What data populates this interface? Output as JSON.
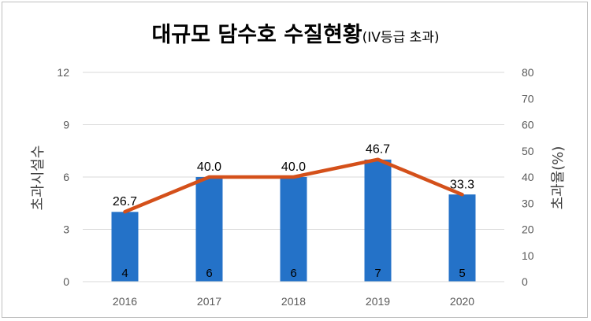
{
  "chart_data": {
    "type": "bar+line",
    "title": "대규모 담수호 수질현황",
    "subtitle": "(IV등급 초과)",
    "categories": [
      "2016",
      "2017",
      "2018",
      "2019",
      "2020"
    ],
    "series": [
      {
        "name": "초과시설수",
        "type": "bar",
        "axis": "left",
        "values": [
          4,
          6,
          6,
          7,
          5
        ],
        "color": "#2472c8"
      },
      {
        "name": "초과율(%)",
        "type": "line",
        "axis": "right",
        "values": [
          26.7,
          40.0,
          40.0,
          46.7,
          33.3
        ],
        "value_labels": [
          "26.7",
          "40.0",
          "40.0",
          "46.7",
          "33.3"
        ],
        "color": "#d4501a"
      }
    ],
    "ylabel_left": "초과시설수",
    "ylabel_right": "초과율(%)",
    "ylim_left": [
      0,
      12
    ],
    "yticks_left": [
      0,
      3,
      6,
      9,
      12
    ],
    "ylim_right": [
      0,
      80
    ],
    "yticks_right": [
      0,
      10,
      20,
      30,
      40,
      50,
      60,
      70,
      80
    ],
    "grid": true,
    "legend": "none"
  }
}
